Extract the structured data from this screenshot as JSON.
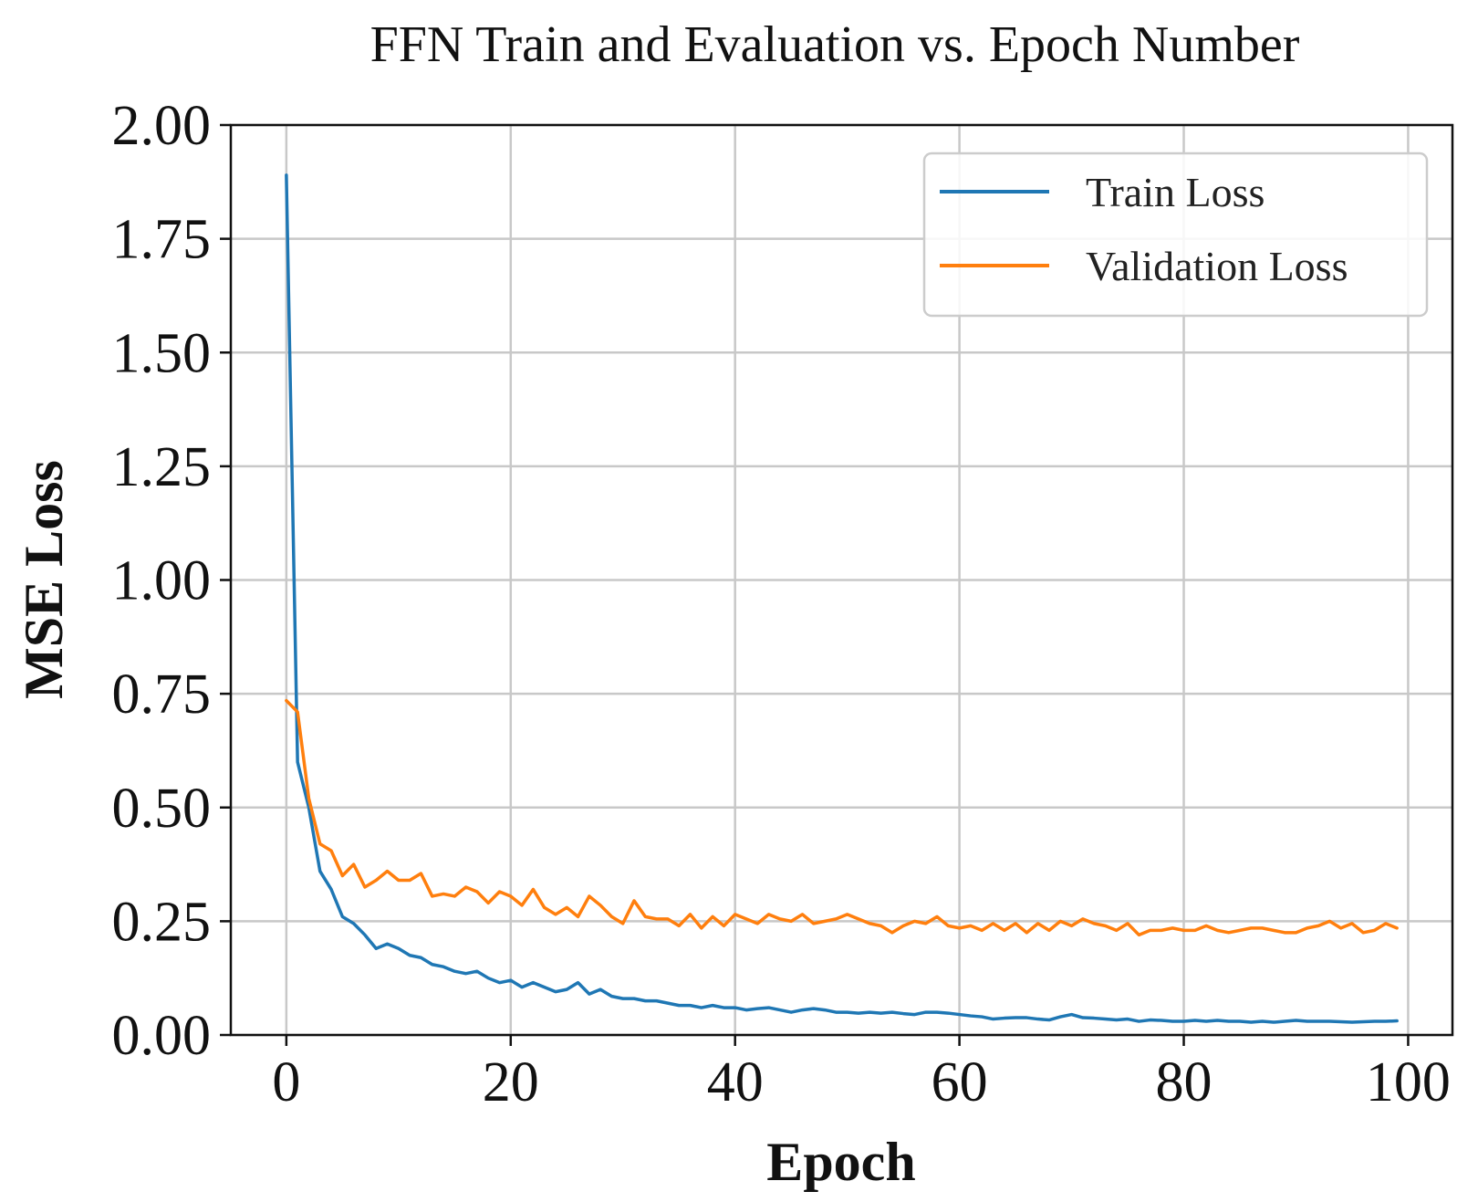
{
  "chart_data": {
    "type": "line",
    "title": "FFN Train and Evaluation vs. Epoch Number",
    "xlabel": "Epoch",
    "ylabel": "MSE Loss",
    "xlim": [
      -4.95,
      103.95
    ],
    "ylim": [
      0.0,
      2.0
    ],
    "xticks": [
      0,
      20,
      40,
      60,
      80,
      100
    ],
    "xtick_labels": [
      "0",
      "20",
      "40",
      "60",
      "80",
      "100"
    ],
    "yticks": [
      0.0,
      0.25,
      0.5,
      0.75,
      1.0,
      1.25,
      1.5,
      1.75,
      2.0
    ],
    "ytick_labels": [
      "0.00",
      "0.25",
      "0.50",
      "0.75",
      "1.00",
      "1.25",
      "1.50",
      "1.75",
      "2.00"
    ],
    "grid": true,
    "legend_position": "top-right",
    "series": [
      {
        "name": "Train Loss",
        "color": "#1f77b4",
        "x": [
          0,
          1,
          2,
          3,
          4,
          5,
          6,
          7,
          8,
          9,
          10,
          11,
          12,
          13,
          14,
          15,
          16,
          17,
          18,
          19,
          20,
          21,
          22,
          23,
          24,
          25,
          26,
          27,
          28,
          29,
          30,
          31,
          32,
          33,
          34,
          35,
          36,
          37,
          38,
          39,
          40,
          41,
          42,
          43,
          44,
          45,
          46,
          47,
          48,
          49,
          50,
          51,
          52,
          53,
          54,
          55,
          56,
          57,
          58,
          59,
          60,
          61,
          62,
          63,
          64,
          65,
          66,
          67,
          68,
          69,
          70,
          71,
          72,
          73,
          74,
          75,
          76,
          77,
          78,
          79,
          80,
          81,
          82,
          83,
          84,
          85,
          86,
          87,
          88,
          89,
          90,
          91,
          92,
          93,
          94,
          95,
          96,
          97,
          98,
          99
        ],
        "values": [
          1.89,
          0.6,
          0.5,
          0.36,
          0.32,
          0.26,
          0.245,
          0.22,
          0.19,
          0.2,
          0.19,
          0.175,
          0.17,
          0.155,
          0.15,
          0.14,
          0.135,
          0.14,
          0.125,
          0.115,
          0.12,
          0.105,
          0.115,
          0.105,
          0.095,
          0.1,
          0.115,
          0.09,
          0.1,
          0.085,
          0.08,
          0.08,
          0.075,
          0.075,
          0.07,
          0.065,
          0.065,
          0.06,
          0.065,
          0.06,
          0.06,
          0.055,
          0.058,
          0.06,
          0.055,
          0.05,
          0.055,
          0.058,
          0.055,
          0.05,
          0.05,
          0.048,
          0.05,
          0.048,
          0.05,
          0.047,
          0.045,
          0.05,
          0.05,
          0.048,
          0.045,
          0.042,
          0.04,
          0.035,
          0.037,
          0.038,
          0.038,
          0.035,
          0.033,
          0.04,
          0.045,
          0.038,
          0.037,
          0.035,
          0.033,
          0.035,
          0.03,
          0.033,
          0.032,
          0.03,
          0.03,
          0.032,
          0.03,
          0.032,
          0.03,
          0.03,
          0.028,
          0.03,
          0.028,
          0.03,
          0.032,
          0.03,
          0.03,
          0.03,
          0.029,
          0.028,
          0.029,
          0.03,
          0.03,
          0.031
        ]
      },
      {
        "name": "Validation Loss",
        "color": "#ff7f0e",
        "x": [
          0,
          1,
          2,
          3,
          4,
          5,
          6,
          7,
          8,
          9,
          10,
          11,
          12,
          13,
          14,
          15,
          16,
          17,
          18,
          19,
          20,
          21,
          22,
          23,
          24,
          25,
          26,
          27,
          28,
          29,
          30,
          31,
          32,
          33,
          34,
          35,
          36,
          37,
          38,
          39,
          40,
          41,
          42,
          43,
          44,
          45,
          46,
          47,
          48,
          49,
          50,
          51,
          52,
          53,
          54,
          55,
          56,
          57,
          58,
          59,
          60,
          61,
          62,
          63,
          64,
          65,
          66,
          67,
          68,
          69,
          70,
          71,
          72,
          73,
          74,
          75,
          76,
          77,
          78,
          79,
          80,
          81,
          82,
          83,
          84,
          85,
          86,
          87,
          88,
          89,
          90,
          91,
          92,
          93,
          94,
          95,
          96,
          97,
          98,
          99
        ],
        "values": [
          0.735,
          0.71,
          0.52,
          0.42,
          0.405,
          0.35,
          0.375,
          0.325,
          0.34,
          0.36,
          0.34,
          0.34,
          0.355,
          0.305,
          0.31,
          0.305,
          0.325,
          0.315,
          0.29,
          0.315,
          0.305,
          0.285,
          0.32,
          0.28,
          0.265,
          0.28,
          0.26,
          0.305,
          0.285,
          0.26,
          0.245,
          0.295,
          0.26,
          0.255,
          0.255,
          0.24,
          0.265,
          0.235,
          0.26,
          0.24,
          0.265,
          0.255,
          0.245,
          0.265,
          0.255,
          0.25,
          0.265,
          0.245,
          0.25,
          0.255,
          0.265,
          0.255,
          0.245,
          0.24,
          0.225,
          0.24,
          0.25,
          0.245,
          0.26,
          0.24,
          0.235,
          0.24,
          0.23,
          0.245,
          0.23,
          0.245,
          0.225,
          0.245,
          0.23,
          0.25,
          0.24,
          0.255,
          0.245,
          0.24,
          0.23,
          0.245,
          0.22,
          0.23,
          0.23,
          0.235,
          0.23,
          0.23,
          0.24,
          0.23,
          0.225,
          0.23,
          0.235,
          0.235,
          0.23,
          0.225,
          0.225,
          0.235,
          0.24,
          0.25,
          0.235,
          0.245,
          0.225,
          0.23,
          0.245,
          0.235
        ]
      }
    ]
  }
}
